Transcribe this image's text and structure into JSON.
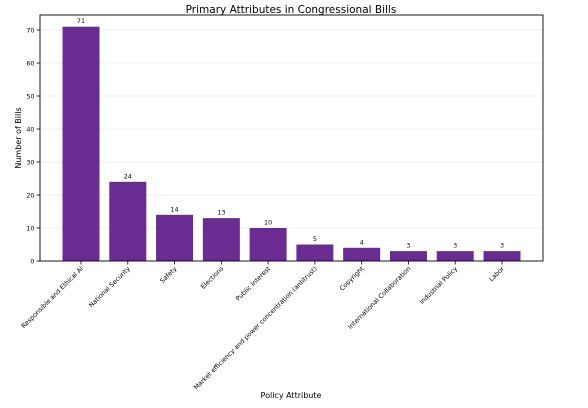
{
  "chart_data": {
    "type": "bar",
    "title": "Primary Attributes in Congressional Bills",
    "xlabel": "Policy Attribute",
    "ylabel": "Number of Bills",
    "categories": [
      "Responsible and Ethical AI",
      "National Security",
      "Safety",
      "Elections",
      "Public Interest",
      "Market efficiency and power concentration (antitrust)",
      "Copyright",
      "International Collaboration",
      "Industrial Policy",
      "Labor"
    ],
    "values": [
      71,
      24,
      14,
      13,
      10,
      5,
      4,
      3,
      3,
      3
    ],
    "ylim": [
      0,
      74.55
    ],
    "yticks": [
      0,
      10,
      20,
      30,
      40,
      50,
      60,
      70
    ],
    "grid": true,
    "bar_color": "#6a2c91",
    "grid_color": "#e6e6e6"
  }
}
